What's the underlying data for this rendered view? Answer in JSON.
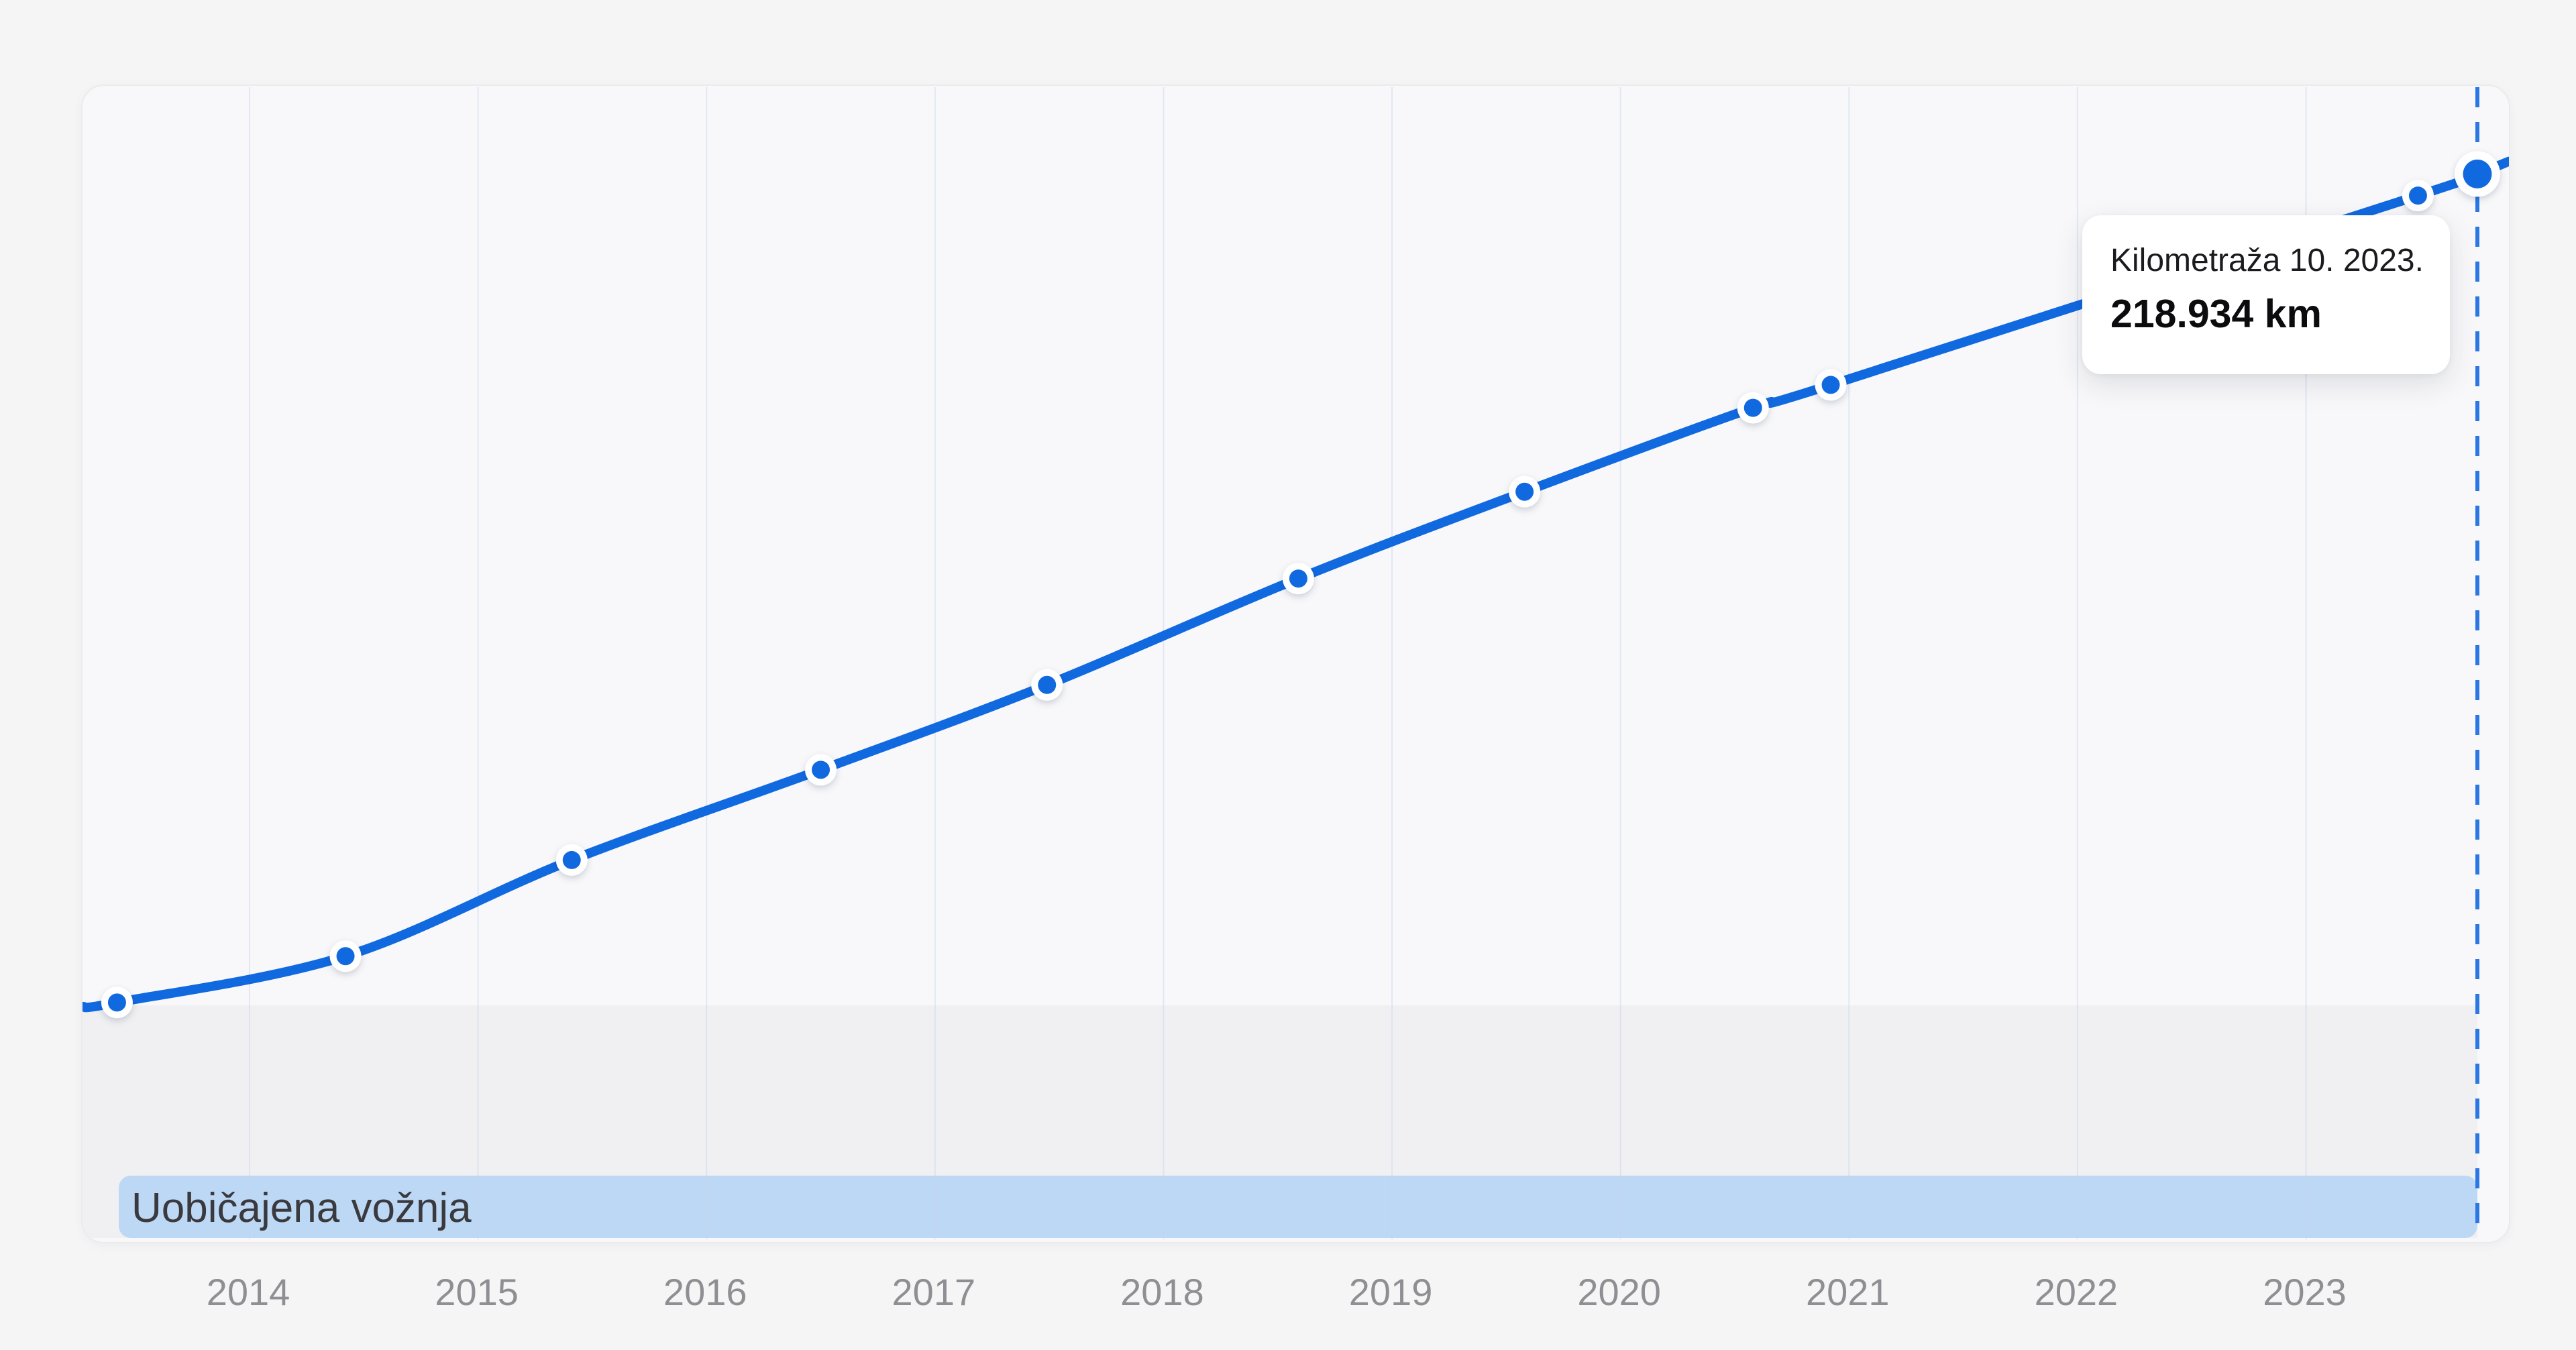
{
  "chart_data": {
    "type": "line",
    "title": "",
    "xlabel": "",
    "ylabel": "",
    "unit": "km",
    "grid": "vertical",
    "legend_position": "none",
    "xlim": [
      2013.269,
      2023.888
    ],
    "ylim": [
      0,
      237000
    ],
    "x_ticks": [
      2014,
      2015,
      2016,
      2017,
      2018,
      2019,
      2020,
      2021,
      2022,
      2023
    ],
    "x_tick_labels": [
      "2014",
      "2015",
      "2016",
      "2017",
      "2018",
      "2019",
      "2020",
      "2021",
      "2022",
      "2023"
    ],
    "series": [
      {
        "name": "Kilometraža",
        "points": [
          {
            "x": 2013.42,
            "y": 49100
          },
          {
            "x": 2014.42,
            "y": 58600
          },
          {
            "x": 2015.41,
            "y": 78300
          },
          {
            "x": 2016.5,
            "y": 96800
          },
          {
            "x": 2017.49,
            "y": 114200
          },
          {
            "x": 2018.59,
            "y": 136000
          },
          {
            "x": 2019.58,
            "y": 153800
          },
          {
            "x": 2020.58,
            "y": 171000
          },
          {
            "x": 2020.92,
            "y": 175700
          },
          {
            "x": 2023.49,
            "y": 214500
          },
          {
            "x": 2023.75,
            "y": 218934
          }
        ]
      }
    ],
    "highlight": {
      "x": 2023.75,
      "y": 218934
    },
    "band": {
      "label": "Uobičajena vožnja",
      "from": 0,
      "to": 48500
    }
  },
  "tooltip": {
    "title": "Kilometraža 10. 2023.",
    "value": "218.934 km"
  },
  "colors": {
    "line": "#1169e0",
    "point_fill": "#1169e0",
    "point_ring": "#ffffff",
    "dashed_line": "#2b78e4",
    "band_region": "#f0f0f2",
    "band_strip": "#bdd8f5",
    "grid": "rgba(198,210,236,0.45)",
    "plot_background": "#f8f8fa",
    "page_background": "#f5f5f6",
    "axis_text": "#8e8e93",
    "band_text": "#3a3a3e"
  }
}
